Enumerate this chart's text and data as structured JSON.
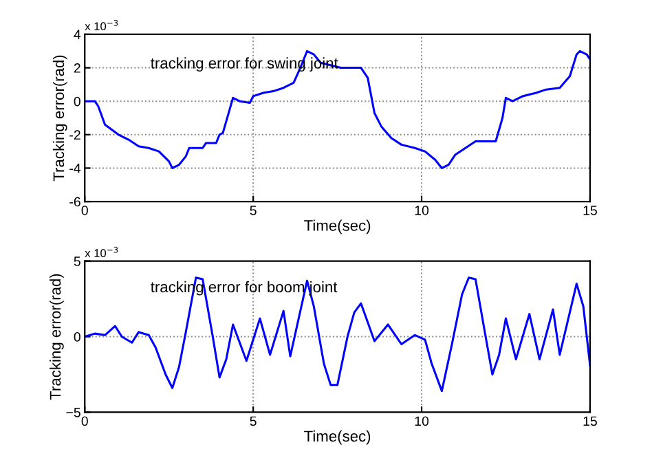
{
  "chart_data": [
    {
      "type": "line",
      "xlabel": "Time(sec)",
      "ylabel": "Tracking error(rad)",
      "annotations": [
        "x 10$^{−3}$",
        "tracking error for swing joint"
      ],
      "xlim": [
        0,
        15
      ],
      "xticks": [
        0,
        5,
        10,
        15
      ],
      "ylim": [
        -6,
        4
      ],
      "yticks": [
        -6,
        -4,
        -2,
        0,
        2,
        4
      ],
      "grid": true,
      "line_style": "solid",
      "marker": "none",
      "series": [
        {
          "color": "#0000ff",
          "x": [
            0,
            0.3,
            0.4,
            0.6,
            0.8,
            1.0,
            1.3,
            1.6,
            1.9,
            2.2,
            2.5,
            2.6,
            2.8,
            3.0,
            3.1,
            3.5,
            3.6,
            3.9,
            4.0,
            4.1,
            4.3,
            4.4,
            4.6,
            4.9,
            5.0,
            5.3,
            5.6,
            5.9,
            6.2,
            6.4,
            6.6,
            6.8,
            7.0,
            7.6,
            8.2,
            8.4,
            8.6,
            8.8,
            9.1,
            9.4,
            9.8,
            10.1,
            10.4,
            10.6,
            10.8,
            11.0,
            11.3,
            11.6,
            12.2,
            12.4,
            12.5,
            12.7,
            13.0,
            13.4,
            13.7,
            14.1,
            14.4,
            14.6,
            14.7,
            14.9,
            15.0
          ],
          "values": [
            0,
            0,
            -0.3,
            -1.4,
            -1.7,
            -2.0,
            -2.3,
            -2.7,
            -2.8,
            -3.0,
            -3.6,
            -4.0,
            -3.8,
            -3.3,
            -2.8,
            -2.8,
            -2.5,
            -2.5,
            -2.0,
            -1.9,
            -0.5,
            0.2,
            0.0,
            -0.1,
            0.3,
            0.5,
            0.6,
            0.8,
            1.1,
            2.0,
            3.0,
            2.8,
            2.3,
            2.0,
            2.0,
            1.4,
            -0.7,
            -1.5,
            -2.2,
            -2.6,
            -2.8,
            -3.0,
            -3.5,
            -4.0,
            -3.8,
            -3.2,
            -2.8,
            -2.4,
            -2.4,
            -1.0,
            0.2,
            0.0,
            0.3,
            0.5,
            0.7,
            0.8,
            1.5,
            2.8,
            3.0,
            2.8,
            2.5
          ]
        }
      ]
    },
    {
      "type": "line",
      "xlabel": "Time(sec)",
      "ylabel": "Tracking error(rad)",
      "annotations": [
        "x 10$^{−3}$",
        "tracking error for boom joint"
      ],
      "xlim": [
        0,
        15
      ],
      "xticks": [
        0,
        5,
        10,
        15
      ],
      "ylim": [
        -5,
        5
      ],
      "yticks": [
        {
          "value": -5,
          "label": "−5"
        },
        0,
        5
      ],
      "grid": true,
      "line_style": "solid",
      "marker": "none",
      "series": [
        {
          "color": "#0000ff",
          "x": [
            0,
            0.3,
            0.6,
            0.9,
            1.1,
            1.4,
            1.6,
            1.9,
            2.1,
            2.4,
            2.6,
            2.8,
            3.0,
            3.3,
            3.5,
            3.8,
            4.0,
            4.2,
            4.4,
            4.8,
            5.2,
            5.5,
            5.9,
            6.1,
            6.6,
            6.8,
            7.1,
            7.3,
            7.5,
            7.8,
            8.0,
            8.2,
            8.6,
            9.0,
            9.4,
            9.8,
            10.1,
            10.3,
            10.6,
            10.9,
            11.2,
            11.4,
            11.6,
            11.9,
            12.1,
            12.3,
            12.5,
            12.8,
            13.2,
            13.5,
            13.9,
            14.1,
            14.6,
            14.8,
            15.0
          ],
          "values": [
            0,
            0.2,
            0.1,
            0.7,
            0,
            -0.4,
            0.3,
            0.1,
            -0.7,
            -2.5,
            -3.4,
            -2.0,
            0.3,
            3.9,
            3.8,
            0,
            -2.7,
            -1.5,
            0.8,
            -1.6,
            1.2,
            -1.2,
            1.7,
            -1.3,
            3.7,
            2.0,
            -1.8,
            -3.2,
            -3.2,
            0,
            1.6,
            2.2,
            -0.3,
            0.8,
            -0.5,
            0.1,
            -0.2,
            -1.8,
            -3.6,
            -0.5,
            2.8,
            3.9,
            3.8,
            0,
            -2.5,
            -1.2,
            1.2,
            -1.5,
            1.5,
            -1.5,
            1.8,
            -1.2,
            3.5,
            2.0,
            -1.9
          ]
        }
      ]
    }
  ]
}
